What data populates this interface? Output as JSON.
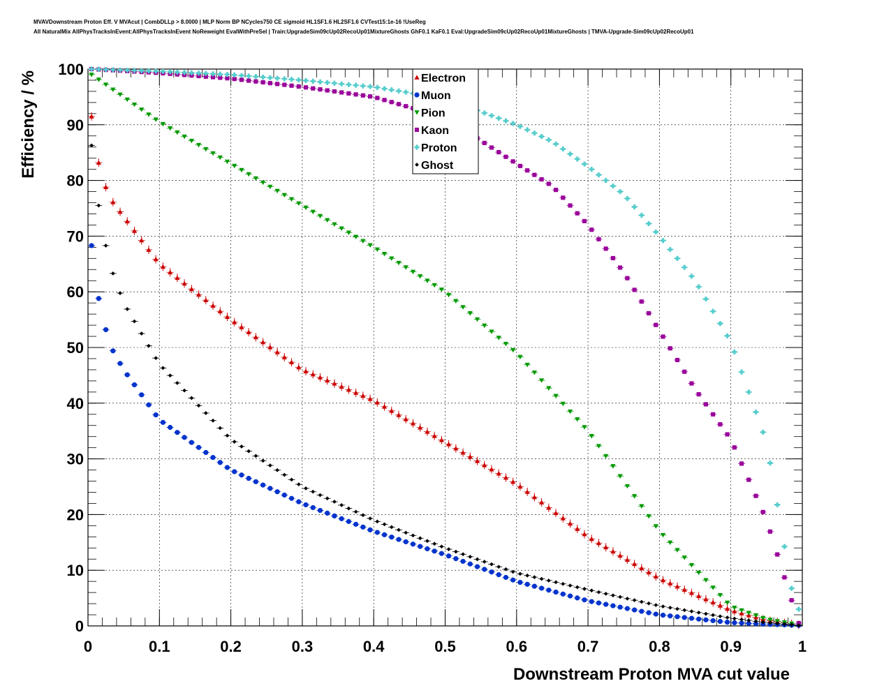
{
  "header": {
    "title_line1": "MVAVDownstream Proton Eff. V MVAcut | CombDLLp > 8.0000 | MLP Norm BP NCycles750 CE sigmoid HL1SF1.6 HL2SF1.6 CVTest15:1e-16 !UseReg",
    "title_line2": "All NaturalMix AllPhysTracksInEvent:AllPhysTracksInEvent NoReweight EvalWithPreSel | Train:UpgradeSim09cUp02RecoUp01MixtureGhosts GhF0.1 KaF0.1 Eval:UpgradeSim09cUp02RecoUp01MixtureGhosts | TMVA-Upgrade-Sim09cUp02RecoUp01"
  },
  "chart_data": {
    "type": "scatter",
    "xlabel": "Downstream Proton MVA cut value",
    "ylabel": "Efficiency / %",
    "xlim": [
      0,
      1
    ],
    "ylim": [
      0,
      100
    ],
    "x_ticks": [
      "0",
      "0.1",
      "0.2",
      "0.3",
      "0.4",
      "0.5",
      "0.6",
      "0.7",
      "0.8",
      "0.9",
      "1"
    ],
    "y_ticks": [
      "0",
      "10",
      "20",
      "30",
      "40",
      "50",
      "60",
      "70",
      "80",
      "90",
      "100"
    ],
    "grid": true,
    "legend_position": "top-center",
    "series": [
      {
        "name": "Electron",
        "color": "#cc0000",
        "marker": "triangle-up",
        "x": [
          0.005,
          0.015,
          0.025,
          0.035,
          0.05,
          0.1,
          0.2,
          0.3,
          0.4,
          0.5,
          0.6,
          0.7,
          0.8,
          0.9,
          0.95,
          0.995
        ],
        "y": [
          91.5,
          83.2,
          78.8,
          76.1,
          73.5,
          65,
          55,
          46,
          40.5,
          33,
          25.5,
          16,
          8.5,
          2.8,
          1,
          0.2
        ]
      },
      {
        "name": "Muon",
        "color": "#0033cc",
        "marker": "circle",
        "x": [
          0.005,
          0.015,
          0.025,
          0.035,
          0.05,
          0.1,
          0.2,
          0.3,
          0.4,
          0.5,
          0.6,
          0.7,
          0.8,
          0.9,
          0.95,
          0.995
        ],
        "y": [
          68.3,
          58.8,
          53.2,
          49.4,
          46,
          37,
          28,
          22,
          17,
          12.8,
          8,
          4.5,
          2,
          0.6,
          0.3,
          0.1
        ]
      },
      {
        "name": "Pion",
        "color": "#009900",
        "marker": "triangle-down",
        "x": [
          0.005,
          0.1,
          0.2,
          0.3,
          0.4,
          0.5,
          0.6,
          0.7,
          0.8,
          0.9,
          0.95,
          0.995
        ],
        "y": [
          99,
          90.5,
          83,
          75.5,
          68,
          60,
          49,
          35,
          17,
          3.5,
          1.2,
          0.2
        ]
      },
      {
        "name": "Kaon",
        "color": "#990099",
        "marker": "square",
        "x": [
          0.005,
          0.1,
          0.2,
          0.3,
          0.4,
          0.5,
          0.6,
          0.65,
          0.7,
          0.75,
          0.8,
          0.85,
          0.9,
          0.95,
          0.995
        ],
        "y": [
          100,
          99.3,
          98.3,
          96.8,
          95,
          91.3,
          83,
          79,
          72,
          63.5,
          53,
          42.5,
          33.5,
          19,
          0.5
        ]
      },
      {
        "name": "Proton",
        "color": "#55cccc",
        "marker": "cross",
        "x": [
          0.005,
          0.1,
          0.2,
          0.3,
          0.4,
          0.5,
          0.6,
          0.65,
          0.7,
          0.75,
          0.8,
          0.85,
          0.9,
          0.95,
          0.99
        ],
        "y": [
          100,
          99.6,
          99,
          98,
          96.8,
          94.7,
          90,
          87,
          82.5,
          77.5,
          70,
          62,
          51,
          33,
          3
        ]
      },
      {
        "name": "Ghost",
        "color": "#000000",
        "marker": "diamond",
        "x": [
          0.005,
          0.015,
          0.025,
          0.035,
          0.05,
          0.1,
          0.2,
          0.3,
          0.4,
          0.5,
          0.6,
          0.7,
          0.8,
          0.9,
          0.95,
          0.995
        ],
        "y": [
          86.3,
          75.5,
          68.3,
          63.3,
          58,
          47,
          33.5,
          25,
          19,
          14,
          9.5,
          6.5,
          3.6,
          1.4,
          0.6,
          0.1
        ]
      }
    ]
  }
}
